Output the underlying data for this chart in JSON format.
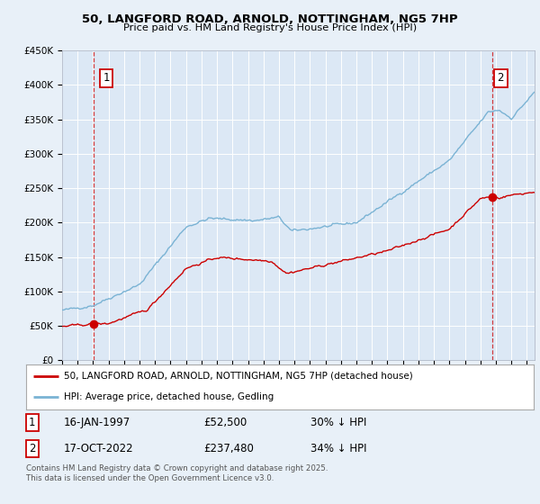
{
  "title": "50, LANGFORD ROAD, ARNOLD, NOTTINGHAM, NG5 7HP",
  "subtitle": "Price paid vs. HM Land Registry's House Price Index (HPI)",
  "background_color": "#e8f0f8",
  "plot_bg_color": "#dce8f5",
  "hpi_color": "#7ab3d4",
  "price_color": "#cc0000",
  "marker_color": "#cc0000",
  "ylim": [
    0,
    450000
  ],
  "yticks": [
    0,
    50000,
    100000,
    150000,
    200000,
    250000,
    300000,
    350000,
    400000,
    450000
  ],
  "ytick_labels": [
    "£0",
    "£50K",
    "£100K",
    "£150K",
    "£200K",
    "£250K",
    "£300K",
    "£350K",
    "£400K",
    "£450K"
  ],
  "sale1_x": 1997.04,
  "sale1_y": 52500,
  "sale1_label": "1",
  "sale2_x": 2022.79,
  "sale2_y": 237480,
  "sale2_label": "2",
  "legend_entry1": "50, LANGFORD ROAD, ARNOLD, NOTTINGHAM, NG5 7HP (detached house)",
  "legend_entry2": "HPI: Average price, detached house, Gedling",
  "table_row1": [
    "1",
    "16-JAN-1997",
    "£52,500",
    "30% ↓ HPI"
  ],
  "table_row2": [
    "2",
    "17-OCT-2022",
    "£237,480",
    "34% ↓ HPI"
  ],
  "footnote": "Contains HM Land Registry data © Crown copyright and database right 2025.\nThis data is licensed under the Open Government Licence v3.0.",
  "xmin": 1995.0,
  "xmax": 2025.5
}
